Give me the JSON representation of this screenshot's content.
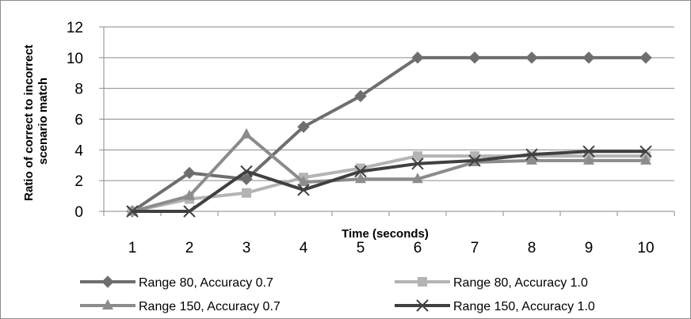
{
  "chart_data": {
    "type": "line",
    "title": "",
    "xlabel": "Time (seconds)",
    "ylabel_lines": [
      "Ratio of correct to incorrect",
      "scenario match"
    ],
    "x": [
      1,
      2,
      3,
      4,
      5,
      6,
      7,
      8,
      9,
      10
    ],
    "ylim": [
      0,
      12
    ],
    "yticks": [
      0,
      2,
      4,
      6,
      8,
      10,
      12
    ],
    "grid": "horizontal",
    "legend_position": "bottom",
    "series": [
      {
        "name": "Range 80, Accuracy 0.7",
        "color": "#6e6e6e",
        "marker": "diamond",
        "values": [
          0,
          2.5,
          2.1,
          5.5,
          7.5,
          10,
          10,
          10,
          10,
          10
        ]
      },
      {
        "name": "Range 80, Accuracy 1.0",
        "color": "#b4b4b4",
        "marker": "square",
        "values": [
          0,
          0.8,
          1.2,
          2.2,
          2.8,
          3.6,
          3.6,
          3.6,
          3.6,
          3.6
        ]
      },
      {
        "name": "Range 150, Accuracy 0.7",
        "color": "#8c8c8c",
        "marker": "triangle",
        "values": [
          0,
          1.0,
          5.0,
          1.9,
          2.1,
          2.1,
          3.2,
          3.3,
          3.3,
          3.3
        ]
      },
      {
        "name": "Range 150, Accuracy 1.0",
        "color": "#404040",
        "marker": "x",
        "values": [
          0,
          0,
          2.6,
          1.4,
          2.6,
          3.1,
          3.3,
          3.7,
          3.9,
          3.9
        ]
      }
    ]
  }
}
